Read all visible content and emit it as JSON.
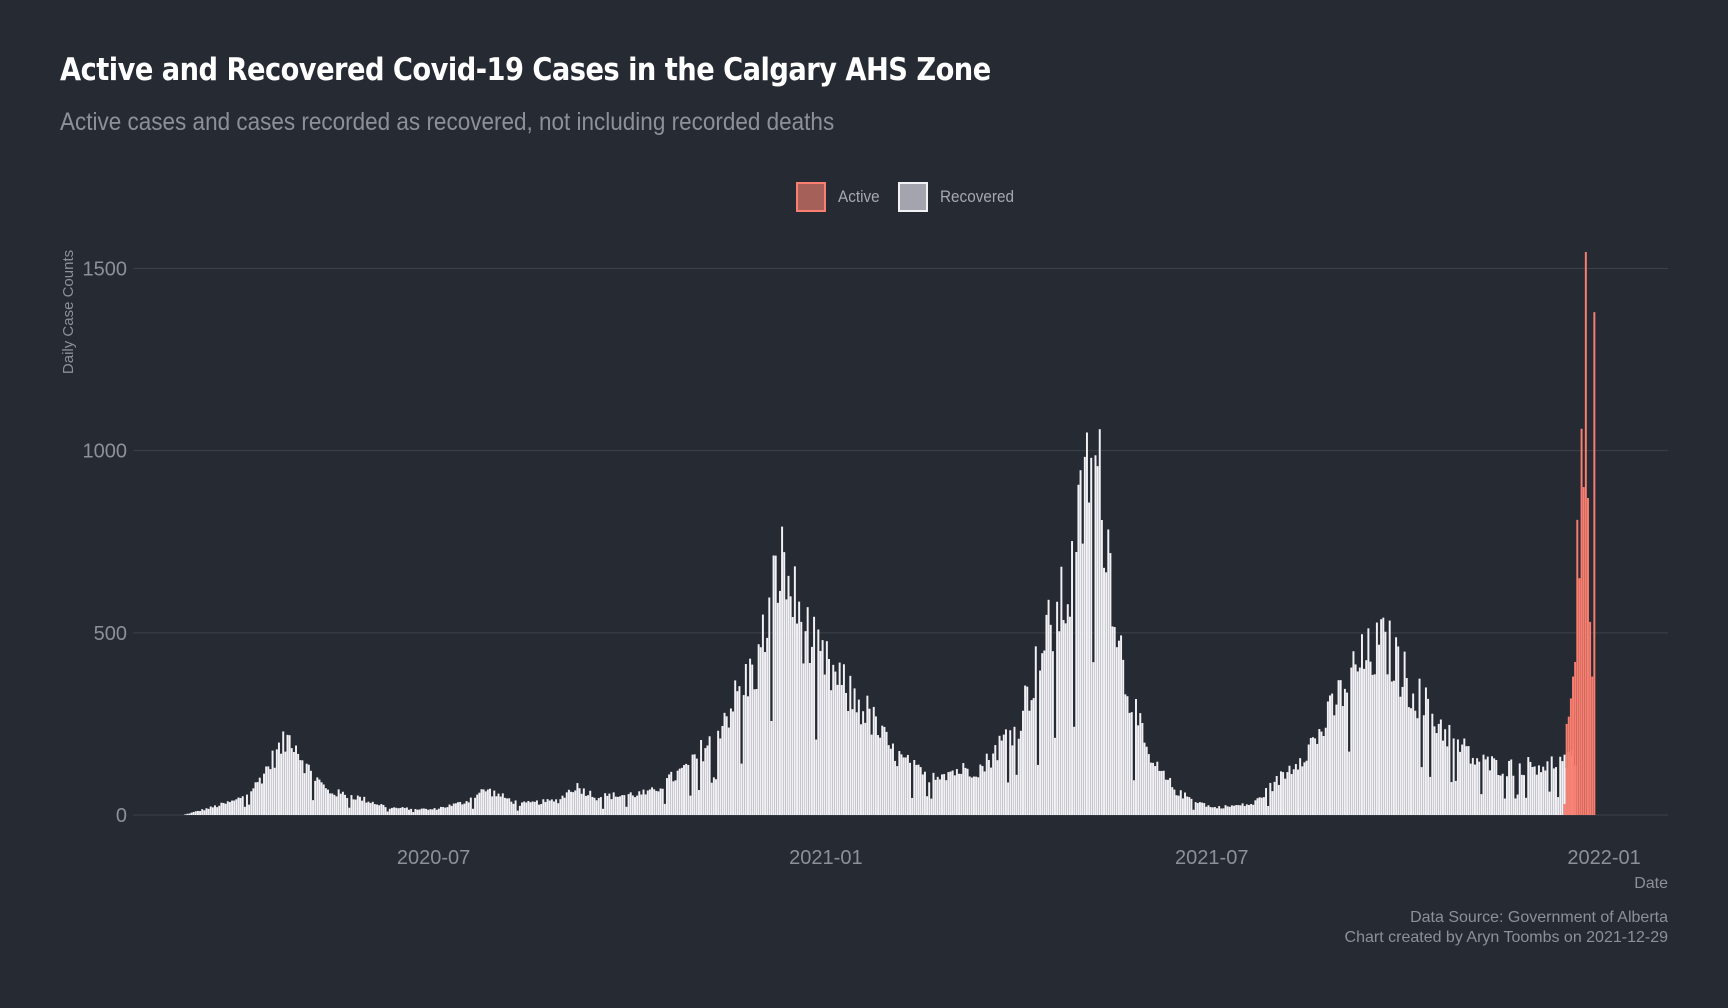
{
  "title": "Active and Recovered Covid-19 Cases in the Calgary AHS Zone",
  "subtitle": "Active cases and cases recorded as recovered, not including recorded deaths",
  "legend": {
    "active_label": "Active",
    "recovered_label": "Recovered"
  },
  "caption": {
    "source": "Data Source: Government of Alberta",
    "credit": "Chart created by Aryn Toombs on 2021-12-29"
  },
  "colors": {
    "background": "#262a33",
    "active": "#fa7f70",
    "recovered": "#f2f1f6",
    "grid": "#3c4049",
    "text_muted": "#8d9098"
  },
  "chart_data": {
    "type": "bar",
    "stacked": true,
    "title": "Active and Recovered Covid-19 Cases in the Calgary AHS Zone",
    "xlabel": "Date",
    "ylabel": "Daily Case Counts",
    "x_ticks": [
      "2020-07",
      "2021-01",
      "2021-07",
      "2022-01"
    ],
    "y_ticks": [
      0,
      500,
      1000,
      1500
    ],
    "ylim": [
      0,
      1600
    ],
    "xlim": [
      "2020-02-11",
      "2022-01-31"
    ],
    "grid": "horizontal",
    "legend_position": "top",
    "recovered_anchors": [
      [
        "2020-03-05",
        0
      ],
      [
        "2020-03-18",
        20
      ],
      [
        "2020-03-30",
        40
      ],
      [
        "2020-04-08",
        80
      ],
      [
        "2020-04-18",
        170
      ],
      [
        "2020-04-25",
        220
      ],
      [
        "2020-05-02",
        130
      ],
      [
        "2020-05-12",
        65
      ],
      [
        "2020-05-25",
        50
      ],
      [
        "2020-06-10",
        20
      ],
      [
        "2020-06-30",
        15
      ],
      [
        "2020-07-15",
        35
      ],
      [
        "2020-07-25",
        70
      ],
      [
        "2020-08-10",
        30
      ],
      [
        "2020-08-28",
        40
      ],
      [
        "2020-09-05",
        80
      ],
      [
        "2020-09-15",
        50
      ],
      [
        "2020-10-10",
        60
      ],
      [
        "2020-10-30",
        140
      ],
      [
        "2020-11-15",
        280
      ],
      [
        "2020-11-30",
        420
      ],
      [
        "2020-12-10",
        700
      ],
      [
        "2020-12-20",
        530
      ],
      [
        "2020-12-28",
        430
      ],
      [
        "2021-01-10",
        340
      ],
      [
        "2021-01-20",
        280
      ],
      [
        "2021-02-01",
        170
      ],
      [
        "2021-02-15",
        110
      ],
      [
        "2021-03-01",
        120
      ],
      [
        "2021-03-15",
        130
      ],
      [
        "2021-04-01",
        260
      ],
      [
        "2021-04-15",
        500
      ],
      [
        "2021-04-25",
        620
      ],
      [
        "2021-05-05",
        1000
      ],
      [
        "2021-05-10",
        880
      ],
      [
        "2021-05-20",
        400
      ],
      [
        "2021-06-01",
        150
      ],
      [
        "2021-06-15",
        60
      ],
      [
        "2021-07-01",
        20
      ],
      [
        "2021-07-20",
        30
      ],
      [
        "2021-08-05",
        120
      ],
      [
        "2021-08-20",
        220
      ],
      [
        "2021-09-05",
        400
      ],
      [
        "2021-09-20",
        470
      ],
      [
        "2021-10-01",
        360
      ],
      [
        "2021-10-15",
        250
      ],
      [
        "2021-11-01",
        150
      ],
      [
        "2021-11-15",
        130
      ],
      [
        "2021-12-05",
        140
      ],
      [
        "2021-12-18",
        150
      ]
    ],
    "active_series": [
      [
        "2021-12-13",
        30
      ],
      [
        "2021-12-14",
        250
      ],
      [
        "2021-12-15",
        270
      ],
      [
        "2021-12-16",
        320
      ],
      [
        "2021-12-17",
        380
      ],
      [
        "2021-12-18",
        420
      ],
      [
        "2021-12-19",
        810
      ],
      [
        "2021-12-20",
        650
      ],
      [
        "2021-12-21",
        1060
      ],
      [
        "2021-12-22",
        900
      ],
      [
        "2021-12-23",
        1545
      ],
      [
        "2021-12-24",
        870
      ],
      [
        "2021-12-25",
        530
      ],
      [
        "2021-12-26",
        380
      ],
      [
        "2021-12-27",
        1380
      ]
    ]
  }
}
